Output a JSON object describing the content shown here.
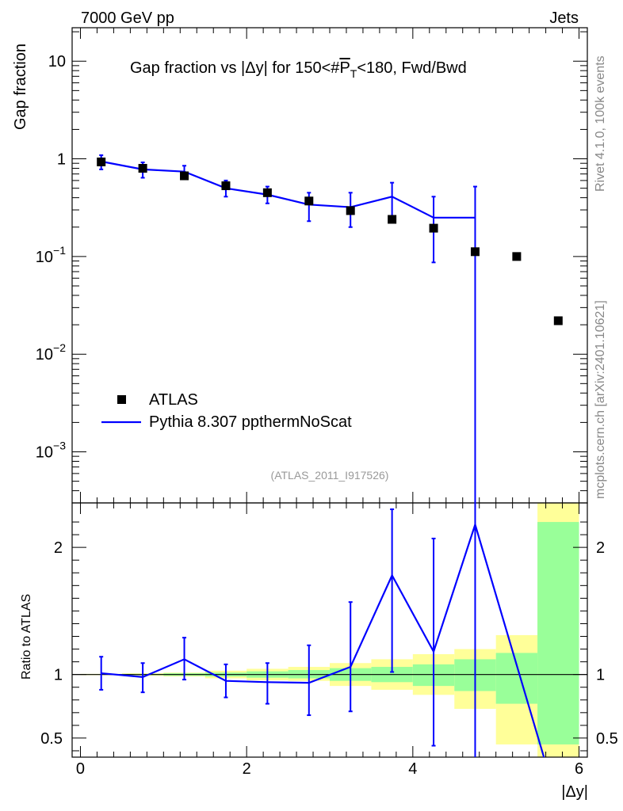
{
  "header": {
    "energy_label": "7000 GeV pp",
    "category_label": "Jets"
  },
  "side_text": {
    "rivet": "Rivet 4.1.0,  100k events",
    "mcplots": "mcplots.cern.ch [arXiv:2401.10621]"
  },
  "chart_data": {
    "type": "scatter",
    "title": "Gap fraction vs |Δy| for 150<#P̅T<180, Fwd/Bwd",
    "title_parts": {
      "prefix": "Gap fraction vs |Δy| for 150<#",
      "pbar": "P",
      "sub": "T",
      "suffix": "<180, Fwd/Bwd"
    },
    "analysis_id": "(ATLAS_2011_I917526)",
    "xlabel": "|Δy|",
    "ylabel": "Gap fraction",
    "ratio_ylabel": "Ratio to ATLAS",
    "xlim": [
      -0.1,
      6.1
    ],
    "ylim": [
      0.0003,
      22
    ],
    "yscale": "log",
    "ratio_ylim": [
      0.35,
      2.35
    ],
    "x_ticks": [
      "0",
      "2",
      "4",
      "6"
    ],
    "x_tick_values": [
      0,
      2,
      4,
      6
    ],
    "y_tick_labels": [
      {
        "value": 10,
        "base": "10",
        "exp": ""
      },
      {
        "value": 1,
        "base": "1",
        "exp": ""
      },
      {
        "value": 0.1,
        "base": "10",
        "exp": "−1"
      },
      {
        "value": 0.01,
        "base": "10",
        "exp": "−2"
      },
      {
        "value": 0.001,
        "base": "10",
        "exp": "−3"
      }
    ],
    "ratio_ticks": [
      {
        "value": 2,
        "label": "2"
      },
      {
        "value": 1,
        "label": "1"
      },
      {
        "value": 0.5,
        "label": "0.5"
      }
    ],
    "legend": [
      {
        "name": "ATLAS",
        "style": "marker"
      },
      {
        "name": "Pythia 8.307 ppthermNoScat",
        "style": "line"
      }
    ],
    "legend_position": "bottom-left",
    "atlas": {
      "x": [
        0.25,
        0.75,
        1.25,
        1.75,
        2.25,
        2.75,
        3.25,
        3.75,
        4.25,
        4.75,
        5.25,
        5.75
      ],
      "y": [
        0.93,
        0.8,
        0.67,
        0.53,
        0.45,
        0.37,
        0.295,
        0.24,
        0.195,
        0.112,
        0.1,
        0.022
      ]
    },
    "pythia": {
      "x_edges": [
        0.25,
        0.75,
        1.25,
        1.75,
        2.25,
        2.75,
        3.25,
        3.75,
        4.25,
        4.75
      ],
      "y": [
        0.94,
        0.78,
        0.74,
        0.5,
        0.43,
        0.34,
        0.32,
        0.41,
        0.25,
        0.25
      ],
      "err_lo": [
        0.78,
        0.64,
        0.63,
        0.41,
        0.35,
        0.23,
        0.2,
        0.24,
        0.087,
        0.0001
      ],
      "err_hi": [
        1.09,
        0.92,
        0.85,
        0.6,
        0.52,
        0.45,
        0.45,
        0.57,
        0.41,
        0.52
      ]
    },
    "ratio": {
      "x": [
        0.25,
        0.75,
        1.25,
        1.75,
        2.25,
        2.75,
        3.25,
        3.75,
        4.25,
        4.75
      ],
      "y": [
        1.01,
        0.98,
        1.12,
        0.95,
        0.94,
        0.935,
        1.06,
        1.78,
        1.18,
        2.18
      ],
      "err_lo": [
        0.88,
        0.86,
        0.96,
        0.82,
        0.77,
        0.68,
        0.71,
        1.02,
        0.44,
        0.3
      ],
      "err_hi": [
        1.14,
        1.09,
        1.29,
        1.08,
        1.09,
        1.23,
        1.57,
        2.3,
        2.07,
        2.35
      ],
      "tail_x": [
        4.75,
        5.6
      ],
      "tail_y": [
        2.18,
        0.3
      ]
    },
    "bands": {
      "x_edges": [
        0,
        0.5,
        1,
        1.5,
        2,
        2.5,
        3,
        3.5,
        4,
        4.5,
        5,
        5.5,
        6
      ],
      "yellow_lo": [
        0.995,
        0.99,
        0.985,
        0.97,
        0.955,
        0.95,
        0.91,
        0.88,
        0.84,
        0.73,
        0.45,
        0.35
      ],
      "yellow_hi": [
        1.005,
        1.01,
        1.015,
        1.03,
        1.045,
        1.06,
        1.09,
        1.12,
        1.16,
        1.2,
        1.31,
        2.35
      ],
      "green_lo": [
        0.998,
        0.995,
        0.99,
        0.985,
        0.975,
        0.97,
        0.95,
        0.94,
        0.91,
        0.87,
        0.77,
        0.45
      ],
      "green_hi": [
        1.002,
        1.005,
        1.01,
        1.015,
        1.025,
        1.035,
        1.05,
        1.06,
        1.08,
        1.12,
        1.17,
        2.2
      ],
      "yellow_color": "#ffff99",
      "green_color": "#99ff99"
    },
    "colors": {
      "atlas": "#000000",
      "pythia": "#0000ff",
      "unity_line": "#000000"
    }
  }
}
